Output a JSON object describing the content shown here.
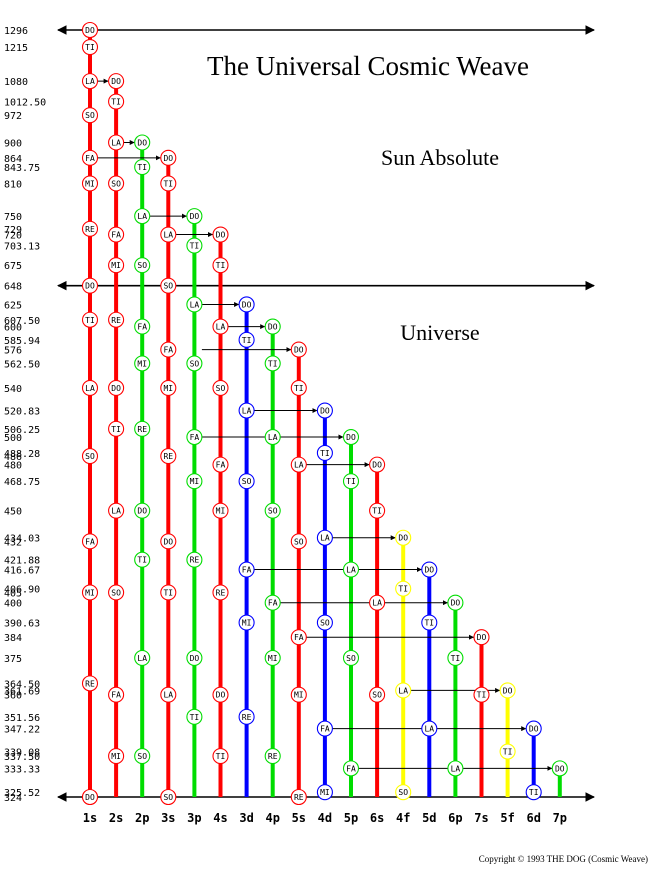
{
  "title": "The Universal Cosmic Weave",
  "region_labels": {
    "sun_absolute": "Sun Absolute",
    "universe": "Universe"
  },
  "copyright": "Copyright © 1993 THE DOG (Cosmic Weave)",
  "axis": {
    "scale": "reciprocal",
    "range": [
      1296,
      324
    ]
  },
  "y_ticks": [
    "1296",
    "1215",
    "1080",
    "1012.50",
    "972",
    "900",
    "864",
    "843.75",
    "810",
    "750",
    "729",
    "720",
    "703.13",
    "675",
    "648",
    "625",
    "607.50",
    "600",
    "585.94",
    "576",
    "562.50",
    "540",
    "520.83",
    "506.25",
    "500",
    "488.28",
    "486",
    "480",
    "468.75",
    "450",
    "434.03",
    "432",
    "421.88",
    "416.67",
    "406.90",
    "405",
    "400",
    "390.63",
    "384",
    "375",
    "364.50",
    "361.69",
    "360",
    "351.56",
    "347.22",
    "339.08",
    "337.50",
    "333.33",
    "325.52",
    "324"
  ],
  "colors": {
    "s": "#ff0000",
    "p": "#00dd00",
    "d": "#0000ff",
    "f": "#ffff00"
  },
  "chart_data": {
    "type": "diagram",
    "notes": [
      "DO",
      "TI",
      "LA",
      "SO",
      "FA",
      "MI",
      "RE"
    ],
    "columns": [
      {
        "label": "1s",
        "color": "s",
        "top": 1296,
        "nodes": [
          [
            1296,
            "DO"
          ],
          [
            1215,
            "TI"
          ],
          [
            1080,
            "LA"
          ],
          [
            972,
            "SO"
          ],
          [
            864,
            "FA"
          ],
          [
            810,
            "MI"
          ],
          [
            729,
            "RE"
          ],
          [
            648,
            "DO"
          ],
          [
            607.5,
            "TI"
          ],
          [
            540,
            "LA"
          ],
          [
            486,
            "SO"
          ],
          [
            432,
            "FA"
          ],
          [
            405,
            "MI"
          ],
          [
            364.5,
            "RE"
          ],
          [
            324,
            "DO"
          ]
        ]
      },
      {
        "label": "2s",
        "color": "s",
        "top": 1080,
        "nodes": [
          [
            1080,
            "DO"
          ],
          [
            1012.5,
            "TI"
          ],
          [
            900,
            "LA"
          ],
          [
            810,
            "SO"
          ],
          [
            720,
            "FA"
          ],
          [
            675,
            "MI"
          ],
          [
            607.5,
            "RE"
          ],
          [
            540,
            "DO"
          ],
          [
            506.25,
            "TI"
          ],
          [
            450,
            "LA"
          ],
          [
            405,
            "SO"
          ],
          [
            360,
            "FA"
          ],
          [
            337.5,
            "MI"
          ]
        ]
      },
      {
        "label": "2p",
        "color": "p",
        "top": 900,
        "nodes": [
          [
            900,
            "DO"
          ],
          [
            843.75,
            "TI"
          ],
          [
            750,
            "LA"
          ],
          [
            675,
            "SO"
          ],
          [
            600,
            "FA"
          ],
          [
            562.5,
            "MI"
          ],
          [
            506.25,
            "RE"
          ],
          [
            450,
            "DO"
          ],
          [
            421.88,
            "TI"
          ],
          [
            375,
            "LA"
          ],
          [
            337.5,
            "SO"
          ]
        ]
      },
      {
        "label": "3s",
        "color": "s",
        "top": 864,
        "nodes": [
          [
            864,
            "DO"
          ],
          [
            810,
            "TI"
          ],
          [
            720,
            "LA"
          ],
          [
            648,
            "SO"
          ],
          [
            576,
            "FA"
          ],
          [
            540,
            "MI"
          ],
          [
            486,
            "RE"
          ],
          [
            432,
            "DO"
          ],
          [
            405,
            "TI"
          ],
          [
            360,
            "LA"
          ],
          [
            324,
            "SO"
          ]
        ]
      },
      {
        "label": "3p",
        "color": "p",
        "top": 750,
        "nodes": [
          [
            750,
            "DO"
          ],
          [
            703.13,
            "TI"
          ],
          [
            625,
            "LA"
          ],
          [
            562.5,
            "SO"
          ],
          [
            500,
            "FA"
          ],
          [
            468.75,
            "MI"
          ],
          [
            421.88,
            "RE"
          ],
          [
            375,
            "DO"
          ],
          [
            351.56,
            "TI"
          ]
        ]
      },
      {
        "label": "4s",
        "color": "s",
        "top": 720,
        "nodes": [
          [
            720,
            "DO"
          ],
          [
            675,
            "TI"
          ],
          [
            600,
            "LA"
          ],
          [
            540,
            "SO"
          ],
          [
            480,
            "FA"
          ],
          [
            450,
            "MI"
          ],
          [
            405,
            "RE"
          ],
          [
            360,
            "DO"
          ],
          [
            337.5,
            "TI"
          ]
        ]
      },
      {
        "label": "3d",
        "color": "d",
        "top": 625,
        "nodes": [
          [
            625,
            "DO"
          ],
          [
            585.94,
            "TI"
          ],
          [
            520.83,
            "LA"
          ],
          [
            468.75,
            "SO"
          ],
          [
            416.67,
            "FA"
          ],
          [
            390.63,
            "MI"
          ],
          [
            351.56,
            "RE"
          ]
        ]
      },
      {
        "label": "4p",
        "color": "p",
        "top": 600,
        "nodes": [
          [
            600,
            "DO"
          ],
          [
            562.5,
            "TI"
          ],
          [
            500,
            "LA"
          ],
          [
            450,
            "SO"
          ],
          [
            400,
            "FA"
          ],
          [
            375,
            "MI"
          ],
          [
            337.5,
            "RE"
          ]
        ]
      },
      {
        "label": "5s",
        "color": "s",
        "top": 576,
        "nodes": [
          [
            576,
            "DO"
          ],
          [
            540,
            "TI"
          ],
          [
            480,
            "LA"
          ],
          [
            432,
            "SO"
          ],
          [
            384,
            "FA"
          ],
          [
            360,
            "MI"
          ],
          [
            324,
            "RE"
          ]
        ]
      },
      {
        "label": "4d",
        "color": "d",
        "top": 520.83,
        "nodes": [
          [
            520.83,
            "DO"
          ],
          [
            488.28,
            "TI"
          ],
          [
            434.03,
            "LA"
          ],
          [
            390.63,
            "SO"
          ],
          [
            347.22,
            "FA"
          ],
          [
            325.52,
            "MI"
          ]
        ]
      },
      {
        "label": "5p",
        "color": "p",
        "top": 500,
        "nodes": [
          [
            500,
            "DO"
          ],
          [
            468.75,
            "TI"
          ],
          [
            416.67,
            "LA"
          ],
          [
            375,
            "SO"
          ],
          [
            333.33,
            "FA"
          ]
        ]
      },
      {
        "label": "6s",
        "color": "s",
        "top": 480,
        "nodes": [
          [
            480,
            "DO"
          ],
          [
            450,
            "TI"
          ],
          [
            400,
            "LA"
          ],
          [
            360,
            "SO"
          ]
        ]
      },
      {
        "label": "4f",
        "color": "f",
        "top": 434.03,
        "nodes": [
          [
            434.03,
            "DO"
          ],
          [
            406.9,
            "TI"
          ],
          [
            361.69,
            "LA"
          ],
          [
            325.52,
            "SO"
          ]
        ]
      },
      {
        "label": "5d",
        "color": "d",
        "top": 416.67,
        "nodes": [
          [
            416.67,
            "DO"
          ],
          [
            390.63,
            "TI"
          ],
          [
            347.22,
            "LA"
          ]
        ]
      },
      {
        "label": "6p",
        "color": "p",
        "top": 400,
        "nodes": [
          [
            400,
            "DO"
          ],
          [
            375,
            "TI"
          ],
          [
            333.33,
            "LA"
          ]
        ]
      },
      {
        "label": "7s",
        "color": "s",
        "top": 384,
        "nodes": [
          [
            384,
            "DO"
          ],
          [
            360,
            "TI"
          ]
        ]
      },
      {
        "label": "5f",
        "color": "f",
        "top": 361.69,
        "nodes": [
          [
            361.69,
            "DO"
          ],
          [
            339.08,
            "TI"
          ]
        ]
      },
      {
        "label": "6d",
        "color": "d",
        "top": 347.22,
        "nodes": [
          [
            347.22,
            "DO"
          ],
          [
            325.52,
            "TI"
          ]
        ]
      },
      {
        "label": "7p",
        "color": "p",
        "top": 333.33,
        "nodes": [
          [
            333.33,
            "DO"
          ]
        ]
      }
    ],
    "connectors": [
      [
        1080,
        0,
        1
      ],
      [
        900,
        1,
        2
      ],
      [
        864,
        0,
        3
      ],
      [
        750,
        2,
        4
      ],
      [
        720,
        3,
        5
      ],
      [
        625,
        4,
        6
      ],
      [
        600,
        5,
        7
      ],
      [
        576,
        4,
        8
      ],
      [
        520.83,
        6,
        9
      ],
      [
        500,
        4,
        10
      ],
      [
        480,
        8,
        11
      ],
      [
        434.03,
        9,
        12
      ],
      [
        416.67,
        6,
        13
      ],
      [
        400,
        7,
        14
      ],
      [
        384,
        8,
        15
      ],
      [
        361.69,
        12,
        16
      ],
      [
        347.22,
        9,
        17
      ],
      [
        333.33,
        10,
        18
      ]
    ],
    "span_arrows": [
      1296,
      648,
      324
    ]
  }
}
